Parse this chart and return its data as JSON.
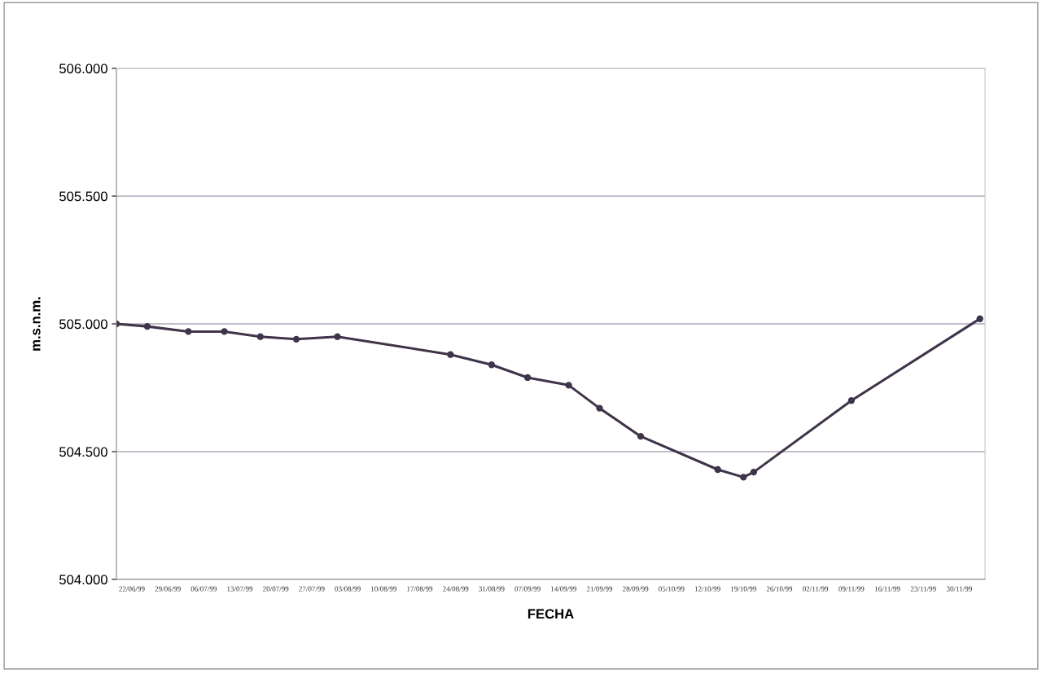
{
  "chart_data": {
    "type": "line",
    "xlabel": "FECHA",
    "ylabel": "m.s.n.m.",
    "x": [
      "1999-06-19",
      "1999-06-25",
      "1999-07-03",
      "1999-07-10",
      "1999-07-17",
      "1999-07-24",
      "1999-08-01",
      "1999-08-23",
      "1999-08-31",
      "1999-09-07",
      "1999-09-15",
      "1999-09-21",
      "1999-09-29",
      "1999-10-14",
      "1999-10-19",
      "1999-10-21",
      "1999-11-09",
      "1999-12-04"
    ],
    "series": [
      {
        "color": "#3f344a",
        "values": [
          505.0,
          504.99,
          504.97,
          504.97,
          504.95,
          504.94,
          504.95,
          504.88,
          504.84,
          504.79,
          504.76,
          504.67,
          504.56,
          504.43,
          504.4,
          504.42,
          504.7,
          505.02
        ]
      }
    ],
    "xlim": [
      "1999-06-19",
      "1999-12-05"
    ],
    "xticks": [
      {
        "value": "1999-06-22",
        "label": "22/06/99"
      },
      {
        "value": "1999-06-29",
        "label": "29/06/99"
      },
      {
        "value": "1999-07-06",
        "label": "06/07/99"
      },
      {
        "value": "1999-07-13",
        "label": "13/07/99"
      },
      {
        "value": "1999-07-20",
        "label": "20/07/99"
      },
      {
        "value": "1999-07-27",
        "label": "27/07/99"
      },
      {
        "value": "1999-08-03",
        "label": "03/08/99"
      },
      {
        "value": "1999-08-10",
        "label": "10/08/99"
      },
      {
        "value": "1999-08-17",
        "label": "17/08/99"
      },
      {
        "value": "1999-08-24",
        "label": "24/08/99"
      },
      {
        "value": "1999-08-31",
        "label": "31/08/99"
      },
      {
        "value": "1999-09-07",
        "label": "07/09/99"
      },
      {
        "value": "1999-09-14",
        "label": "14/09/99"
      },
      {
        "value": "1999-09-21",
        "label": "21/09/99"
      },
      {
        "value": "1999-09-28",
        "label": "28/09/99"
      },
      {
        "value": "1999-10-05",
        "label": "05/10/99"
      },
      {
        "value": "1999-10-12",
        "label": "12/10/99"
      },
      {
        "value": "1999-10-19",
        "label": "19/10/99"
      },
      {
        "value": "1999-10-26",
        "label": "26/10/99"
      },
      {
        "value": "1999-11-02",
        "label": "02/11/99"
      },
      {
        "value": "1999-11-09",
        "label": "09/11/99"
      },
      {
        "value": "1999-11-16",
        "label": "16/11/99"
      },
      {
        "value": "1999-11-23",
        "label": "23/11/99"
      },
      {
        "value": "1999-11-30",
        "label": "30/11/99"
      }
    ],
    "ylim": [
      504,
      506
    ],
    "yticks": [
      {
        "value": 504,
        "label": "504.000"
      },
      {
        "value": 504.5,
        "label": "504.500"
      },
      {
        "value": 505,
        "label": "505.000"
      },
      {
        "value": 505.5,
        "label": "505.500"
      },
      {
        "value": 506,
        "label": "506.000"
      }
    ],
    "grid": "y",
    "legend": false,
    "marker": "circle",
    "line_style": "solid"
  }
}
